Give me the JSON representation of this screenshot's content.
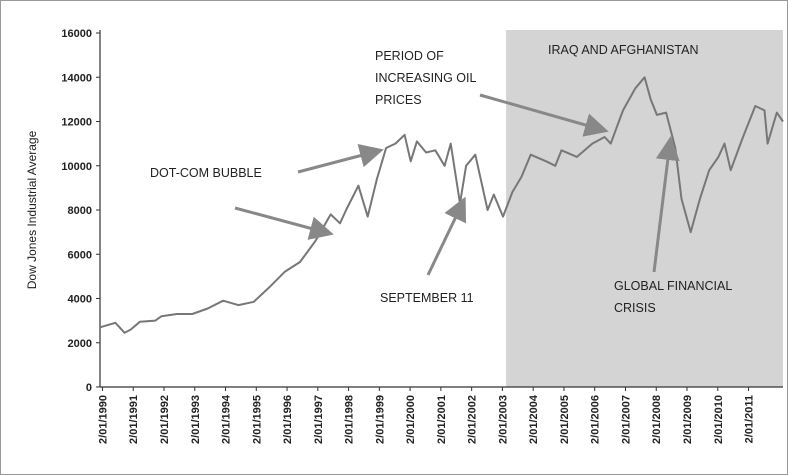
{
  "chart_data": {
    "type": "line",
    "y_label": "Dow Jones Industrial Average",
    "x": [
      1990.0,
      1990.5,
      1990.8,
      1991.0,
      1991.3,
      1991.8,
      1992.0,
      1992.5,
      1993.0,
      1993.5,
      1994.0,
      1994.5,
      1995.0,
      1995.5,
      1996.0,
      1996.5,
      1997.0,
      1997.5,
      1997.8,
      1998.0,
      1998.4,
      1998.7,
      1999.0,
      1999.3,
      1999.6,
      1999.9,
      2000.1,
      2000.3,
      2000.6,
      2000.9,
      2001.2,
      2001.4,
      2001.7,
      2001.9,
      2002.2,
      2002.6,
      2002.8,
      2003.1,
      2003.4,
      2003.7,
      2004.0,
      2004.5,
      2004.8,
      2005.0,
      2005.5,
      2006.0,
      2006.4,
      2006.6,
      2007.0,
      2007.4,
      2007.7,
      2007.9,
      2008.1,
      2008.4,
      2008.7,
      2008.9,
      2009.2,
      2009.5,
      2009.8,
      2010.1,
      2010.3,
      2010.5,
      2010.9,
      2011.3,
      2011.6,
      2011.7,
      2012.0,
      2012.2
    ],
    "series": [
      {
        "name": "Dow Jones Industrial Average",
        "color": "#777777",
        "values": [
          2700,
          2900,
          2450,
          2600,
          2950,
          3000,
          3200,
          3300,
          3300,
          3550,
          3900,
          3700,
          3850,
          4500,
          5200,
          5650,
          6600,
          7800,
          7400,
          8000,
          9100,
          7700,
          9400,
          10800,
          11000,
          11400,
          10200,
          11100,
          10600,
          10700,
          10000,
          11000,
          8300,
          10000,
          10500,
          8000,
          8700,
          7700,
          8800,
          9500,
          10500,
          10200,
          10000,
          10700,
          10400,
          11000,
          11300,
          11000,
          12500,
          13500,
          14000,
          13000,
          12300,
          12400,
          10800,
          8500,
          7000,
          8500,
          9800,
          10400,
          11000,
          9800,
          11300,
          12700,
          12500,
          11000,
          12400,
          12000
        ]
      }
    ],
    "xlim": [
      1990.0,
      2012.2
    ],
    "xticks": [
      {
        "value": 1990.08,
        "label": "2/01/1990"
      },
      {
        "value": 1991.08,
        "label": "2/01/1991"
      },
      {
        "value": 1992.08,
        "label": "2/01/1992"
      },
      {
        "value": 1993.08,
        "label": "2/01/1993"
      },
      {
        "value": 1994.08,
        "label": "2/01/1994"
      },
      {
        "value": 1995.08,
        "label": "2/01/1995"
      },
      {
        "value": 1996.08,
        "label": "2/01/1996"
      },
      {
        "value": 1997.08,
        "label": "2/01/1997"
      },
      {
        "value": 1998.08,
        "label": "2/01/1998"
      },
      {
        "value": 1999.08,
        "label": "2/01/1999"
      },
      {
        "value": 2000.08,
        "label": "2/01/2000"
      },
      {
        "value": 2001.08,
        "label": "2/01/2001"
      },
      {
        "value": 2002.08,
        "label": "2/01/2002"
      },
      {
        "value": 2003.08,
        "label": "2/01/2003"
      },
      {
        "value": 2004.08,
        "label": "2/01/2004"
      },
      {
        "value": 2005.08,
        "label": "2/01/2005"
      },
      {
        "value": 2006.08,
        "label": "2/01/2006"
      },
      {
        "value": 2007.08,
        "label": "2/01/2007"
      },
      {
        "value": 2008.08,
        "label": "2/01/2008"
      },
      {
        "value": 2009.08,
        "label": "2/01/2009"
      },
      {
        "value": 2010.08,
        "label": "2/01/2010"
      },
      {
        "value": 2011.08,
        "label": "2/01/2011"
      }
    ],
    "ylim": [
      0,
      16000
    ],
    "yticks": [
      0,
      2000,
      4000,
      6000,
      8000,
      10000,
      12000,
      14000,
      16000
    ],
    "shaded_region": {
      "label": "IRAQ AND AFGHANISTAN",
      "x": [
        2003.2,
        2012.2
      ],
      "color": "#d4d4d4"
    },
    "annotations": [
      {
        "lines": [
          "DOT-COM BUBBLE"
        ]
      },
      {
        "lines": [
          "PERIOD OF",
          "INCREASING OIL",
          "PRICES"
        ]
      },
      {
        "lines": [
          "SEPTEMBER 11"
        ]
      },
      {
        "lines": [
          "GLOBAL FINANCIAL",
          "CRISIS"
        ]
      }
    ]
  }
}
